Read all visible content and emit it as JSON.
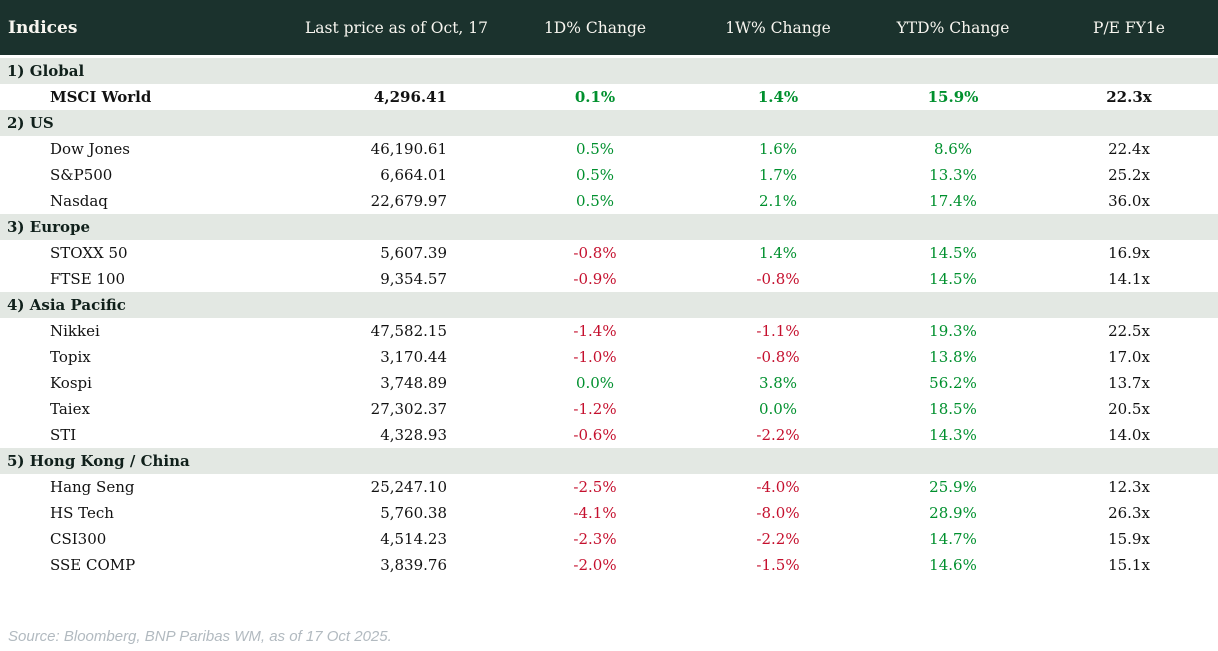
{
  "header": {
    "title": "Indices"
  },
  "chart_data": {
    "type": "table",
    "columns": [
      "Indices",
      "Last price as of Oct, 17",
      "1D% Change",
      "1W% Change",
      "YTD% Change",
      "P/E FY1e"
    ],
    "sections": [
      {
        "label": "1) Global",
        "rows": [
          {
            "name": "MSCI World",
            "price": "4,296.41",
            "d1": "0.1%",
            "w1": "1.4%",
            "ytd": "15.9%",
            "pe": "22.3x",
            "bold": true
          }
        ]
      },
      {
        "label": "2) US",
        "rows": [
          {
            "name": "Dow Jones",
            "price": "46,190.61",
            "d1": "0.5%",
            "w1": "1.6%",
            "ytd": "8.6%",
            "pe": "22.4x"
          },
          {
            "name": "S&P500",
            "price": "6,664.01",
            "d1": "0.5%",
            "w1": "1.7%",
            "ytd": "13.3%",
            "pe": "25.2x"
          },
          {
            "name": "Nasdaq",
            "price": "22,679.97",
            "d1": "0.5%",
            "w1": "2.1%",
            "ytd": "17.4%",
            "pe": "36.0x"
          }
        ]
      },
      {
        "label": "3) Europe",
        "rows": [
          {
            "name": "STOXX 50",
            "price": "5,607.39",
            "d1": "-0.8%",
            "w1": "1.4%",
            "ytd": "14.5%",
            "pe": "16.9x"
          },
          {
            "name": "FTSE 100",
            "price": "9,354.57",
            "d1": "-0.9%",
            "w1": "-0.8%",
            "ytd": "14.5%",
            "pe": "14.1x"
          }
        ]
      },
      {
        "label": "4) Asia Pacific",
        "rows": [
          {
            "name": "Nikkei",
            "price": "47,582.15",
            "d1": "-1.4%",
            "w1": "-1.1%",
            "ytd": "19.3%",
            "pe": "22.5x"
          },
          {
            "name": "Topix",
            "price": "3,170.44",
            "d1": "-1.0%",
            "w1": "-0.8%",
            "ytd": "13.8%",
            "pe": "17.0x"
          },
          {
            "name": "Kospi",
            "price": "3,748.89",
            "d1": "0.0%",
            "w1": "3.8%",
            "ytd": "56.2%",
            "pe": "13.7x"
          },
          {
            "name": "Taiex",
            "price": "27,302.37",
            "d1": "-1.2%",
            "w1": "0.0%",
            "ytd": "18.5%",
            "pe": "20.5x"
          },
          {
            "name": "STI",
            "price": "4,328.93",
            "d1": "-0.6%",
            "w1": "-2.2%",
            "ytd": "14.3%",
            "pe": "14.0x"
          }
        ]
      },
      {
        "label": "5) Hong Kong / China",
        "rows": [
          {
            "name": "Hang Seng",
            "price": "25,247.10",
            "d1": "-2.5%",
            "w1": "-4.0%",
            "ytd": "25.9%",
            "pe": "12.3x"
          },
          {
            "name": "HS Tech",
            "price": "5,760.38",
            "d1": "-4.1%",
            "w1": "-8.0%",
            "ytd": "28.9%",
            "pe": "26.3x"
          },
          {
            "name": "CSI300",
            "price": "4,514.23",
            "d1": "-2.3%",
            "w1": "-2.2%",
            "ytd": "14.7%",
            "pe": "15.9x"
          },
          {
            "name": "SSE COMP",
            "price": "3,839.76",
            "d1": "-2.0%",
            "w1": "-1.5%",
            "ytd": "14.6%",
            "pe": "15.1x"
          }
        ]
      }
    ]
  },
  "footer": {
    "source": "Source: Bloomberg, BNP Paribas WM, as of 17 Oct 2025."
  },
  "colors": {
    "positive": "#00902e",
    "negative": "#c5102e",
    "header_bg": "#1b322d",
    "section_bg": "#e3e8e3"
  }
}
